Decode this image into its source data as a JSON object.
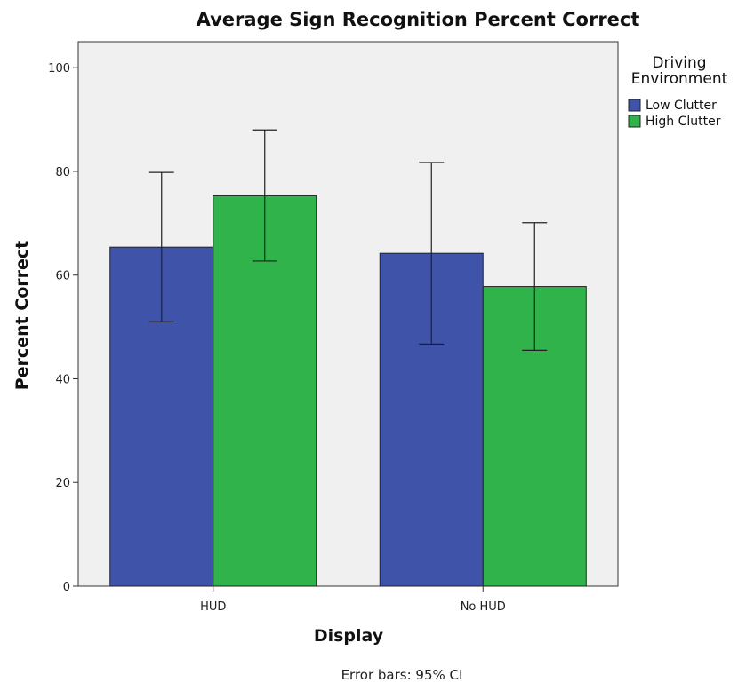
{
  "chart_data": {
    "type": "bar",
    "title": "Average Sign Recognition Percent Correct",
    "xlabel": "Display",
    "ylabel": "Percent Correct",
    "categories": [
      "HUD",
      "No HUD"
    ],
    "ylim": [
      0,
      105
    ],
    "yticks": [
      0,
      20,
      40,
      60,
      80,
      100
    ],
    "legend": {
      "title_lines": [
        "Driving",
        "Environment"
      ],
      "placement": "right"
    },
    "series": [
      {
        "name": "Low Clutter",
        "color": "#3f54a9",
        "values": [
          65.4,
          64.2
        ],
        "ci_low": [
          51.0,
          46.7
        ],
        "ci_high": [
          79.8,
          81.7
        ]
      },
      {
        "name": "High Clutter",
        "color": "#2fb34a",
        "values": [
          75.3,
          57.8
        ],
        "ci_low": [
          62.7,
          45.5
        ],
        "ci_high": [
          88.0,
          70.1
        ]
      }
    ],
    "footnote": "Error bars: 95% CI",
    "plot_background": "#f0f0f0",
    "grid": false
  }
}
